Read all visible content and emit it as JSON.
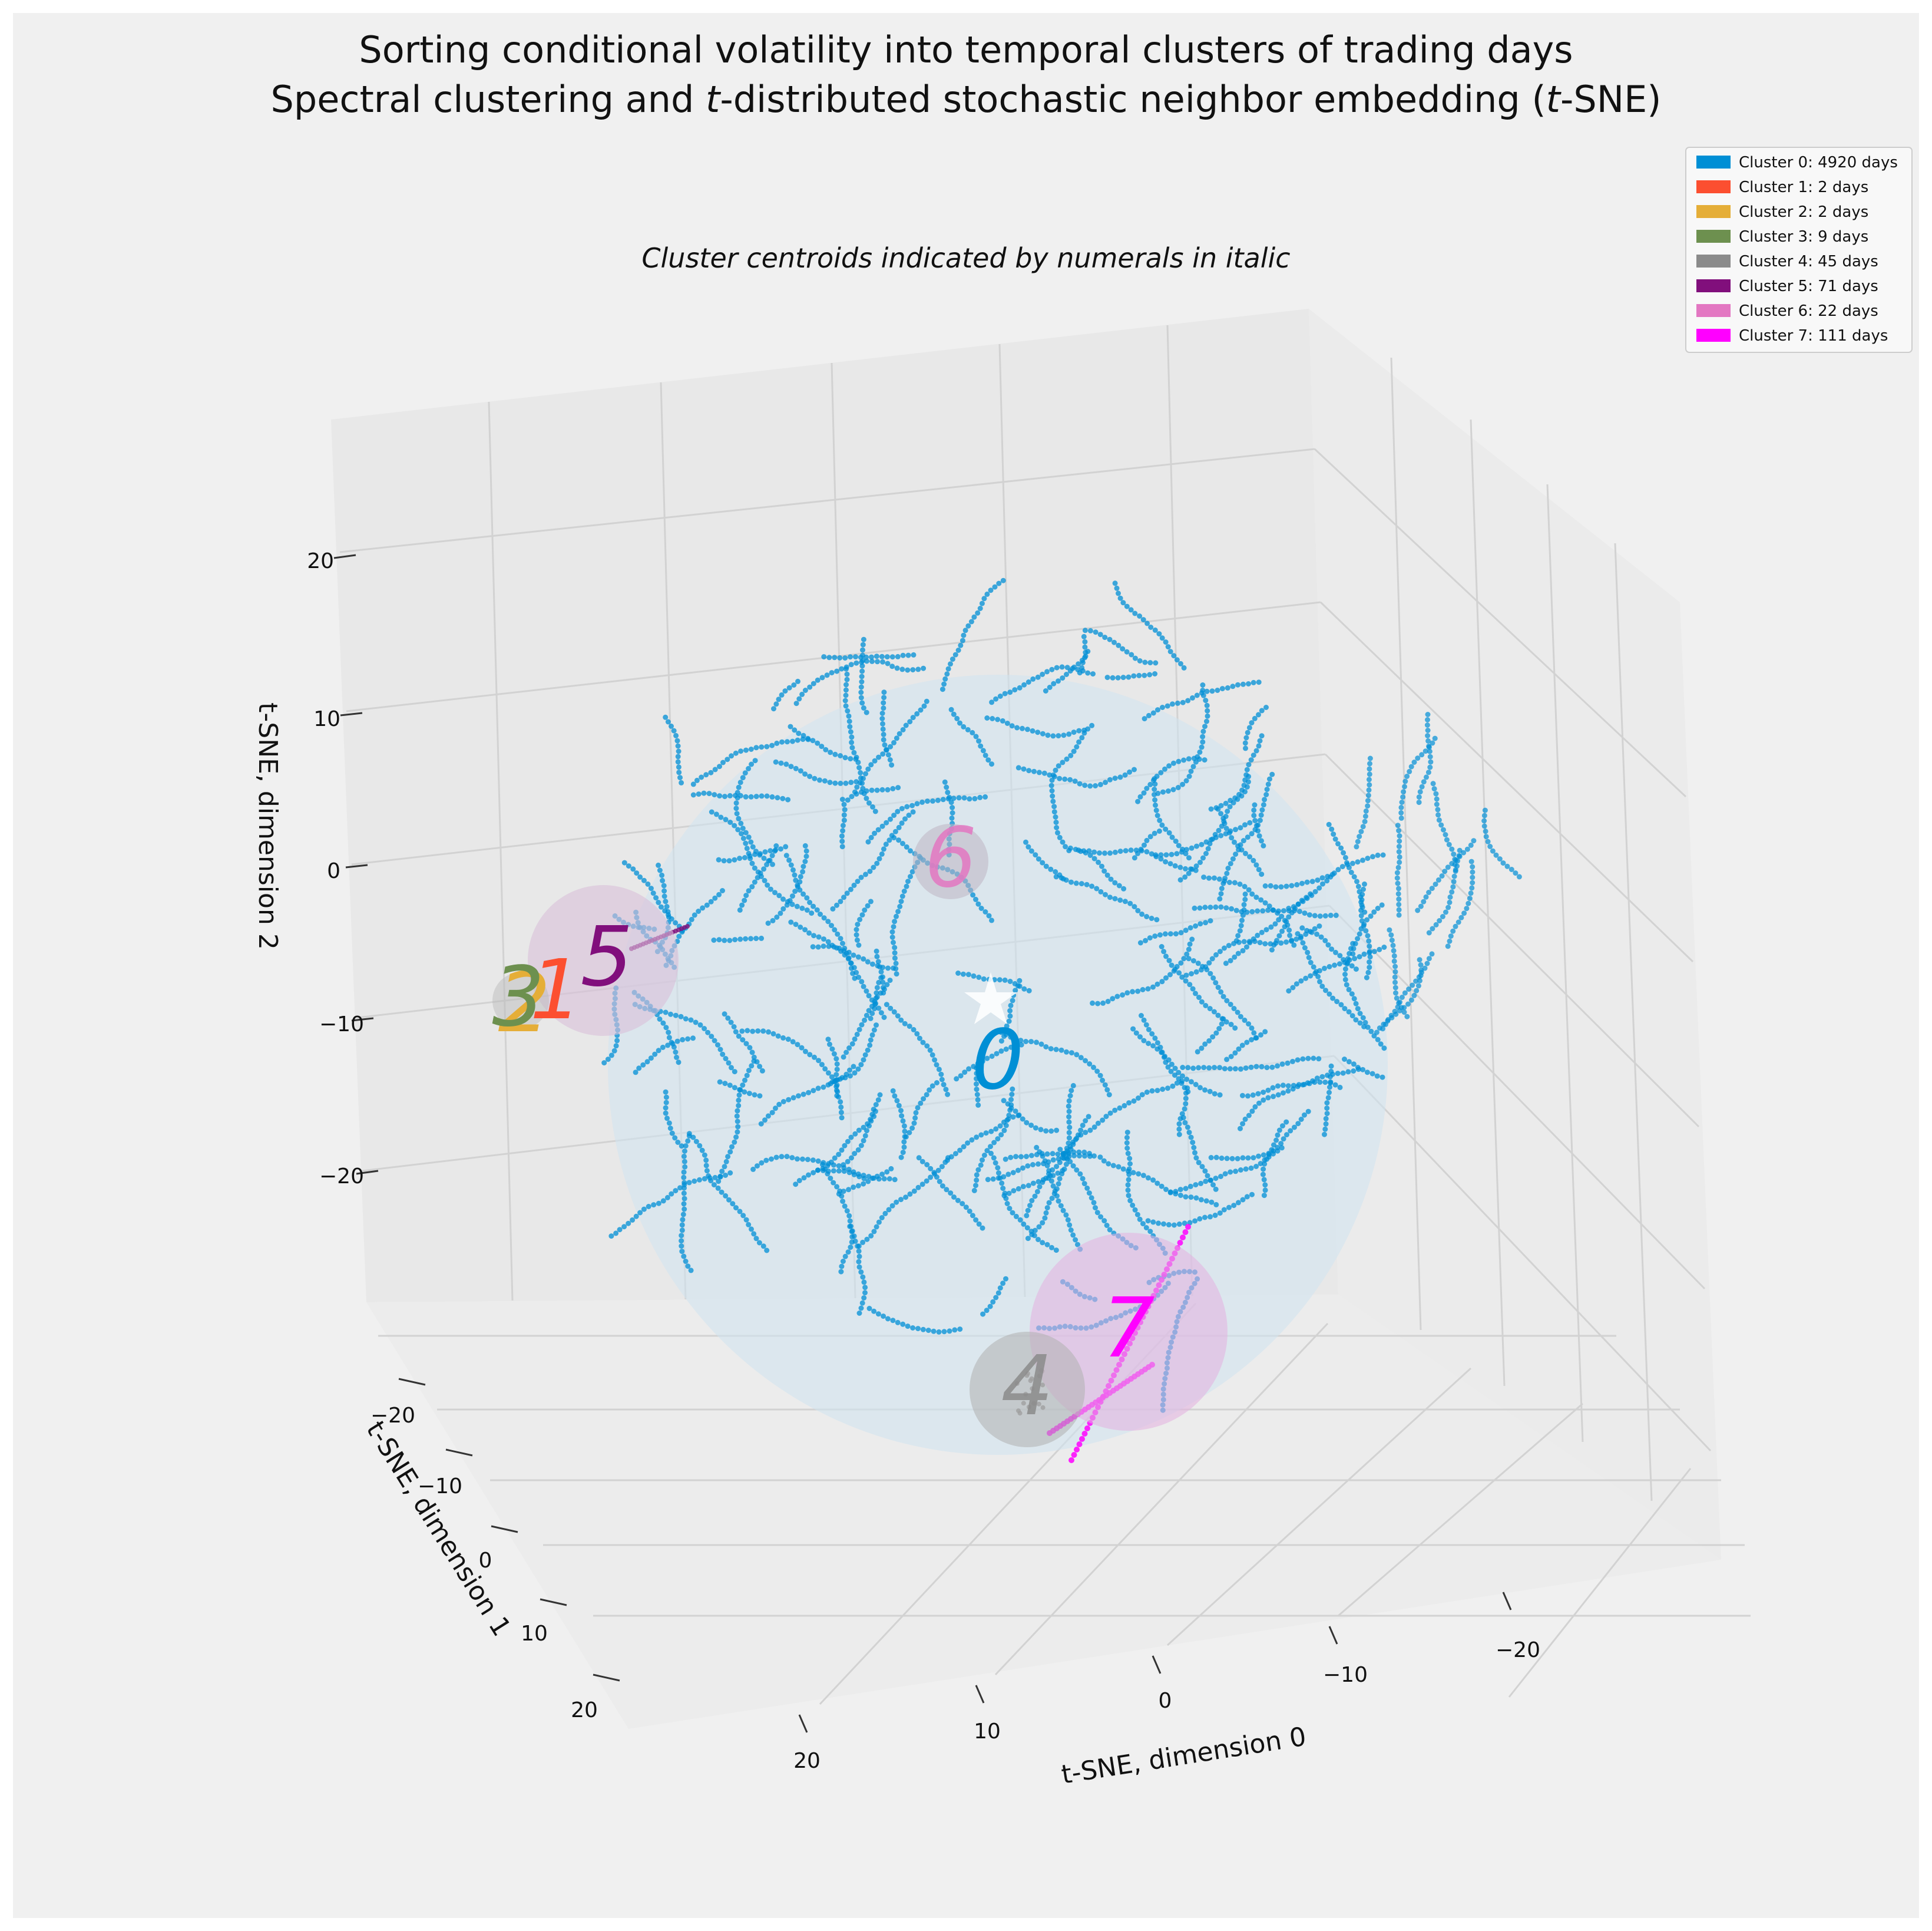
{
  "chart_data": {
    "type": "scatter3d",
    "title_line1": "Sorting conditional volatility into temporal clusters of trading days",
    "title_line2_pre": "Spectral clustering and ",
    "title_t": "t",
    "title_line2_mid": "-distributed stochastic neighbor embedding (",
    "title_line2_post": "-SNE)",
    "subtitle": "Cluster centroids indicated by numerals in italic",
    "xlabel": "t-SNE, dimension 0",
    "ylabel": "t-SNE, dimension 1",
    "zlabel": "t-SNE, dimension 2",
    "x_ticks": [
      "20",
      "10",
      "0",
      "−10",
      "−20"
    ],
    "y_ticks": [
      "−20",
      "−10",
      "0",
      "10",
      "20"
    ],
    "z_ticks": [
      "20",
      "10",
      "0",
      "−10",
      "−20"
    ],
    "legend": [
      {
        "label": "Cluster 0: 4920 days",
        "color": "#008fd5"
      },
      {
        "label": "Cluster 1: 2 days",
        "color": "#fc4f30"
      },
      {
        "label": "Cluster 2: 2 days",
        "color": "#e5ae38"
      },
      {
        "label": "Cluster 3: 9 days",
        "color": "#6d904f"
      },
      {
        "label": "Cluster 4: 45 days",
        "color": "#8b8b8b"
      },
      {
        "label": "Cluster 5: 71 days",
        "color": "#810f7c"
      },
      {
        "label": "Cluster 6: 22 days",
        "color": "#e377c2"
      },
      {
        "label": "Cluster 7: 111 days",
        "color": "#ff00ff"
      }
    ],
    "centroids": [
      {
        "label": "0",
        "color": "#008fd5"
      },
      {
        "label": "1",
        "color": "#fc4f30"
      },
      {
        "label": "2",
        "color": "#e5ae38"
      },
      {
        "label": "3",
        "color": "#6d904f"
      },
      {
        "label": "4",
        "color": "#8b8b8b"
      },
      {
        "label": "5",
        "color": "#810f7c"
      },
      {
        "label": "6",
        "color": "#e377c2"
      },
      {
        "label": "7",
        "color": "#ff00ff"
      }
    ]
  }
}
